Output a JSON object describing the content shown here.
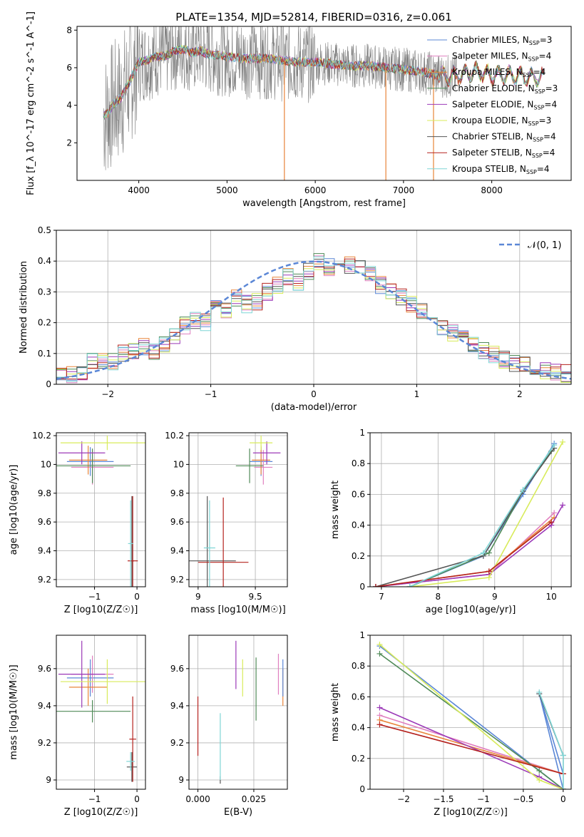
{
  "figure": {
    "title": "PLATE=1354, MJD=52814, FIBERID=0316, z=0.061"
  },
  "series": [
    {
      "name": "Chabrier MILES",
      "n": "3",
      "color": "#5b87d6"
    },
    {
      "name": "Salpeter MILES",
      "n": "4",
      "color": "#e07fbf"
    },
    {
      "name": "Kroupa MILES",
      "n": "4",
      "color": "#e8853a"
    },
    {
      "name": "Chabrier ELODIE",
      "n": "3",
      "color": "#4f8a57"
    },
    {
      "name": "Salpeter ELODIE",
      "n": "4",
      "color": "#9b39b8"
    },
    {
      "name": "Kroupa ELODIE",
      "n": "3",
      "color": "#d8eb5a"
    },
    {
      "name": "Chabrier STELIB",
      "n": "4",
      "color": "#555555"
    },
    {
      "name": "Salpeter STELIB",
      "n": "4",
      "color": "#b5221e"
    },
    {
      "name": "Kroupa STELIB",
      "n": "4",
      "color": "#7fd6d6"
    }
  ],
  "chart_data": [
    {
      "id": "spectrum",
      "type": "line",
      "xlabel": "wavelength [Angstrom, rest frame]",
      "ylabel": "Flux [f_λ 10^-17 erg cm^-2 s^-1 A^-1]",
      "xlim": [
        3300,
        8900
      ],
      "ylim": [
        0,
        8.2
      ],
      "xticks": [
        4000,
        5000,
        6000,
        7000,
        8000
      ],
      "yticks": [
        2,
        4,
        6,
        8
      ],
      "legend_position": "right",
      "legend_ssp_label": "SSP",
      "data_range": [
        3600,
        8600
      ],
      "continuum": {
        "wavelength": [
          3600,
          3650,
          3700,
          3750,
          3800,
          3850,
          3900,
          3950,
          4000,
          4100,
          4200,
          4300,
          4400,
          4500,
          4600,
          4700,
          4800,
          4900,
          5000,
          5200,
          5400,
          5600,
          5800,
          6000,
          6200,
          6400,
          6600,
          6800,
          7000,
          7200,
          7400,
          7600,
          7800,
          8000,
          8200,
          8400,
          8600
        ],
        "flux": [
          3.4,
          3.6,
          4.0,
          4.2,
          4.4,
          4.9,
          5.3,
          5.8,
          6.3,
          6.4,
          6.6,
          6.6,
          6.9,
          7.0,
          6.8,
          6.9,
          6.7,
          6.7,
          6.6,
          6.5,
          6.5,
          6.4,
          6.3,
          6.3,
          6.2,
          6.1,
          6.1,
          6.0,
          5.9,
          5.8,
          5.6,
          5.5,
          5.8,
          5.6,
          5.6,
          5.5,
          5.5
        ]
      },
      "absorption_features": [
        {
          "wavelength": 5650,
          "flux": 0
        },
        {
          "wavelength": 6800,
          "flux": 0
        },
        {
          "wavelength": 7340,
          "flux": 0
        }
      ]
    },
    {
      "id": "residuals",
      "type": "area",
      "xlabel": "(data-model)/error",
      "ylabel": "Normed distribution",
      "xlim": [
        -2.5,
        2.5
      ],
      "ylim": [
        0,
        0.5
      ],
      "xticks": [
        -2,
        -1,
        0,
        1,
        2
      ],
      "yticks": [
        0.0,
        0.1,
        0.2,
        0.3,
        0.4,
        0.5
      ],
      "legend_label": "𝒩(0, 1)",
      "legend_position": "top-right",
      "bin_width": 0.1,
      "bins_start": -2.5,
      "histogram": [
        0.03,
        0.035,
        0.03,
        0.08,
        0.07,
        0.075,
        0.1,
        0.105,
        0.12,
        0.11,
        0.13,
        0.16,
        0.19,
        0.205,
        0.2,
        0.25,
        0.24,
        0.28,
        0.26,
        0.27,
        0.3,
        0.32,
        0.35,
        0.33,
        0.37,
        0.4,
        0.38,
        0.41,
        0.39,
        0.38,
        0.36,
        0.32,
        0.3,
        0.28,
        0.26,
        0.24,
        0.21,
        0.19,
        0.17,
        0.15,
        0.13,
        0.11,
        0.1,
        0.08,
        0.07,
        0.06,
        0.05,
        0.045,
        0.04,
        0.035
      ],
      "gaussian": {
        "mean": 0,
        "sigma": 1
      }
    },
    {
      "id": "age_vs_Z",
      "type": "scatter",
      "xlabel": "Z [log10(Z/Z☉)]",
      "ylabel": "age [log10(age/yr)]",
      "xlim": [
        -1.9,
        0.2
      ],
      "ylim": [
        9.15,
        10.22
      ],
      "xticks": [
        -1,
        0
      ],
      "yticks": [
        9.2,
        9.4,
        9.6,
        9.8,
        10.0,
        10.2
      ],
      "points": [
        {
          "x": -1.1,
          "xerr": 0.55,
          "y": 10.02,
          "yerr": 0.1,
          "series": 0
        },
        {
          "x": -1.05,
          "xerr": 0.5,
          "y": 9.98,
          "yerr": 0.12,
          "series": 1
        },
        {
          "x": -1.15,
          "xerr": 0.45,
          "y": 10.03,
          "yerr": 0.1,
          "series": 2
        },
        {
          "x": -1.05,
          "xerr": 0.9,
          "y": 9.99,
          "yerr": 0.12,
          "series": 3
        },
        {
          "x": -1.3,
          "xerr": 0.55,
          "y": 10.08,
          "yerr": 0.08,
          "series": 4
        },
        {
          "x": -0.7,
          "xerr": 1.1,
          "y": 10.15,
          "yerr": 0.05,
          "series": 5
        },
        {
          "x": -0.12,
          "xerr": 0.05,
          "y": 9.33,
          "yerr": 0.45,
          "series": 6
        },
        {
          "x": -0.1,
          "xerr": 0.12,
          "y": 9.33,
          "yerr": 0.45,
          "series": 7
        },
        {
          "x": -0.15,
          "xerr": 0.06,
          "y": 9.45,
          "yerr": 0.3,
          "series": 8
        }
      ]
    },
    {
      "id": "age_vs_mass",
      "type": "scatter",
      "xlabel": "mass [log10(M/M☉)]",
      "ylabel": "",
      "xlim": [
        8.92,
        9.78
      ],
      "ylim": [
        9.15,
        10.22
      ],
      "xticks": [
        9.0,
        9.5
      ],
      "yticks": [
        9.2,
        9.4,
        9.6,
        9.8,
        10.0,
        10.2
      ],
      "points": [
        {
          "x": 9.55,
          "xerr": 0.1,
          "y": 10.02,
          "yerr": 0.1,
          "series": 0
        },
        {
          "x": 9.57,
          "xerr": 0.08,
          "y": 9.98,
          "yerr": 0.12,
          "series": 1
        },
        {
          "x": 9.55,
          "xerr": 0.08,
          "y": 10.03,
          "yerr": 0.1,
          "series": 2
        },
        {
          "x": 9.45,
          "xerr": 0.12,
          "y": 9.99,
          "yerr": 0.12,
          "series": 3
        },
        {
          "x": 9.6,
          "xerr": 0.12,
          "y": 10.08,
          "yerr": 0.08,
          "series": 4
        },
        {
          "x": 9.55,
          "xerr": 0.1,
          "y": 10.15,
          "yerr": 0.05,
          "series": 5
        },
        {
          "x": 9.08,
          "xerr": 0.25,
          "y": 9.33,
          "yerr": 0.45,
          "series": 6
        },
        {
          "x": 9.22,
          "xerr": 0.22,
          "y": 9.32,
          "yerr": 0.45,
          "series": 7
        },
        {
          "x": 9.1,
          "xerr": 0.05,
          "y": 9.42,
          "yerr": 0.33,
          "series": 8
        }
      ]
    },
    {
      "id": "weight_vs_age",
      "type": "line",
      "xlabel": "age [log10(age/yr)]",
      "ylabel": "mass weight",
      "xlim": [
        6.8,
        10.35
      ],
      "ylim": [
        0,
        1.0
      ],
      "xticks": [
        7,
        8,
        9,
        10
      ],
      "yticks": [
        0.0,
        0.2,
        0.4,
        0.6,
        0.8,
        1.0
      ],
      "lines": [
        {
          "series": 0,
          "x": [
            7.5,
            8.8,
            9.5,
            10.05
          ],
          "y": [
            0.0,
            0.2,
            0.6,
            0.93
          ]
        },
        {
          "series": 1,
          "x": [
            6.9,
            8.9,
            10.05
          ],
          "y": [
            0.0,
            0.08,
            0.48
          ]
        },
        {
          "series": 2,
          "x": [
            6.9,
            8.9,
            10.05
          ],
          "y": [
            0.0,
            0.1,
            0.45
          ]
        },
        {
          "series": 3,
          "x": [
            7.5,
            8.9,
            9.5,
            10.0
          ],
          "y": [
            0.0,
            0.22,
            0.62,
            0.88
          ]
        },
        {
          "series": 4,
          "x": [
            6.9,
            8.9,
            10.0,
            10.2
          ],
          "y": [
            0.0,
            0.08,
            0.4,
            0.53
          ]
        },
        {
          "series": 5,
          "x": [
            7.5,
            8.9,
            10.2
          ],
          "y": [
            0.0,
            0.06,
            0.94
          ]
        },
        {
          "series": 6,
          "x": [
            6.9,
            8.8,
            9.5,
            10.05
          ],
          "y": [
            0.0,
            0.2,
            0.62,
            0.9
          ]
        },
        {
          "series": 7,
          "x": [
            6.9,
            8.9,
            10.0
          ],
          "y": [
            0.0,
            0.1,
            0.42
          ]
        },
        {
          "series": 8,
          "x": [
            7.5,
            8.8,
            9.5,
            10.05
          ],
          "y": [
            0.0,
            0.22,
            0.63,
            0.92
          ]
        }
      ]
    },
    {
      "id": "mass_vs_Z",
      "type": "scatter",
      "xlabel": "Z [log10(Z/Z☉)]",
      "ylabel": "mass [log10(M/M☉)]",
      "xlim": [
        -1.9,
        0.2
      ],
      "ylim": [
        8.95,
        9.78
      ],
      "xticks": [
        -1,
        0
      ],
      "yticks": [
        9.0,
        9.2,
        9.4,
        9.6
      ],
      "points": [
        {
          "x": -1.1,
          "xerr": 0.55,
          "y": 9.55,
          "yerr": 0.1,
          "series": 0
        },
        {
          "x": -1.05,
          "xerr": 0.5,
          "y": 9.57,
          "yerr": 0.1,
          "series": 1
        },
        {
          "x": -1.15,
          "xerr": 0.45,
          "y": 9.5,
          "yerr": 0.1,
          "series": 2
        },
        {
          "x": -1.05,
          "xerr": 0.9,
          "y": 9.37,
          "yerr": 0.06,
          "series": 3
        },
        {
          "x": -1.3,
          "xerr": 0.55,
          "y": 9.57,
          "yerr": 0.18,
          "series": 4
        },
        {
          "x": -0.7,
          "xerr": 1.1,
          "y": 9.53,
          "yerr": 0.12,
          "series": 5
        },
        {
          "x": -0.12,
          "xerr": 0.12,
          "y": 9.07,
          "yerr": 0.08,
          "series": 6
        },
        {
          "x": -0.1,
          "xerr": 0.08,
          "y": 9.22,
          "yerr": 0.23,
          "series": 7
        },
        {
          "x": -0.15,
          "xerr": 0.1,
          "y": 9.1,
          "yerr": 0.05,
          "series": 8
        }
      ]
    },
    {
      "id": "mass_vs_EBV",
      "type": "scatter",
      "xlabel": "E(B-V)",
      "ylabel": "",
      "xlim": [
        -0.004,
        0.04
      ],
      "ylim": [
        8.95,
        9.78
      ],
      "xticks": [
        0.0,
        0.025
      ],
      "xticklabels": [
        "0.000",
        "0.025"
      ],
      "yticks": [
        9.0,
        9.2,
        9.4,
        9.6
      ],
      "points": [
        {
          "x": 0.0,
          "y": 9.29,
          "yerr": 0.16,
          "series": 7
        },
        {
          "x": 0.01,
          "y": 9.0,
          "yerr": 0.02,
          "series": 6
        },
        {
          "x": 0.01,
          "y": 9.18,
          "yerr": 0.18,
          "series": 8
        },
        {
          "x": 0.017,
          "y": 9.62,
          "yerr": 0.13,
          "series": 4
        },
        {
          "x": 0.02,
          "y": 9.55,
          "yerr": 0.1,
          "series": 5
        },
        {
          "x": 0.026,
          "y": 9.49,
          "yerr": 0.17,
          "series": 3
        },
        {
          "x": 0.036,
          "y": 9.57,
          "yerr": 0.11,
          "series": 1
        },
        {
          "x": 0.038,
          "y": 9.5,
          "yerr": 0.1,
          "series": 2
        },
        {
          "x": 0.038,
          "y": 9.55,
          "yerr": 0.1,
          "series": 0
        }
      ]
    },
    {
      "id": "weight_vs_Z",
      "type": "line",
      "xlabel": "Z [log10(Z/Z☉)]",
      "ylabel": "mass weight",
      "xlim": [
        -2.42,
        0.1
      ],
      "ylim": [
        0,
        1.0
      ],
      "xticks": [
        -2.0,
        -1.5,
        -1.0,
        -0.5,
        0.0
      ],
      "yticks": [
        0.0,
        0.2,
        0.4,
        0.6,
        0.8,
        1.0
      ],
      "lines": [
        {
          "series": 0,
          "x": [
            -2.3,
            0.0,
            -0.3,
            0.0
          ],
          "y": [
            0.93,
            0.0,
            0.62,
            0.1
          ]
        },
        {
          "series": 1,
          "x": [
            -2.3,
            0.0
          ],
          "y": [
            0.48,
            0.1
          ]
        },
        {
          "series": 2,
          "x": [
            -2.3,
            0.0
          ],
          "y": [
            0.45,
            0.1
          ]
        },
        {
          "series": 3,
          "x": [
            -2.3,
            -0.3,
            0.0
          ],
          "y": [
            0.88,
            0.12,
            0.0
          ]
        },
        {
          "series": 4,
          "x": [
            -2.3,
            -0.3,
            0.0
          ],
          "y": [
            0.53,
            0.08,
            0.0
          ]
        },
        {
          "series": 5,
          "x": [
            -2.3,
            -0.3,
            0.0
          ],
          "y": [
            0.94,
            0.06,
            0.0
          ]
        },
        {
          "series": 6,
          "x": [
            -0.3,
            0.0,
            0.0
          ],
          "y": [
            0.62,
            0.22,
            0.0
          ]
        },
        {
          "series": 7,
          "x": [
            -2.3,
            0.0
          ],
          "y": [
            0.42,
            0.1
          ]
        },
        {
          "series": 8,
          "x": [
            -0.3,
            0.0,
            0.0
          ],
          "y": [
            0.63,
            0.22,
            0.0
          ]
        }
      ]
    }
  ]
}
